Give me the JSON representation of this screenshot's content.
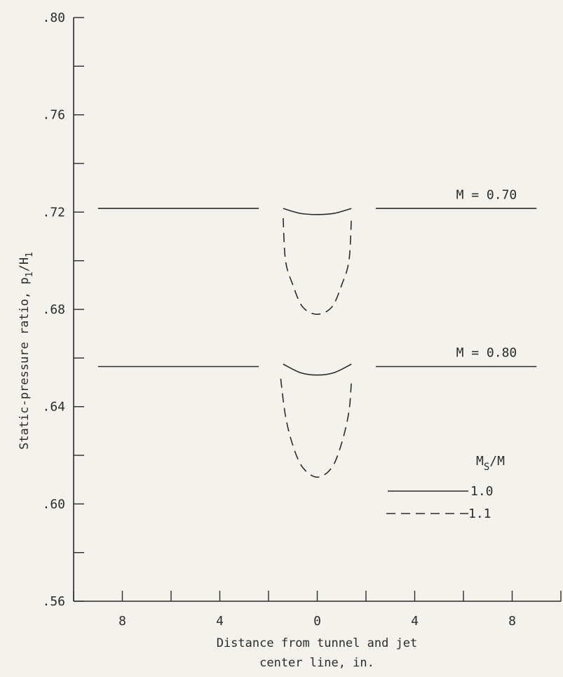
{
  "chart_data": {
    "type": "line",
    "xlabel_line1": "Distance from tunnel and jet",
    "xlabel_line2": "center line, in.",
    "ylabel_main": "Static-pressure ratio, p",
    "ylabel_sub1": "1",
    "ylabel_slash": "/H",
    "ylabel_sub2": "1",
    "x_tick_labels": [
      "8",
      "4",
      "0",
      "4",
      "8"
    ],
    "x_tick_values": [
      -8,
      -4,
      0,
      4,
      8
    ],
    "y_tick_labels": [
      ".56",
      ".60",
      ".64",
      ".68",
      ".72",
      ".76",
      ".80"
    ],
    "y_tick_values": [
      0.56,
      0.6,
      0.64,
      0.68,
      0.72,
      0.76,
      0.8
    ],
    "xlim": [
      -10,
      10
    ],
    "ylim": [
      0.56,
      0.8
    ],
    "grid": false,
    "curve_labels": [
      {
        "text": "M = 0.70",
        "x": 5.7,
        "y": 0.7255
      },
      {
        "text": "M = 0.80",
        "x": 5.7,
        "y": 0.6605
      }
    ],
    "legend": {
      "title_main": "M",
      "title_sub": "S",
      "title_rest": "/M",
      "entries": [
        "1.0",
        "1.1"
      ],
      "placement": "bottom-right"
    },
    "series": [
      {
        "legend": "1.0",
        "group": "M = 0.70",
        "style": "solid",
        "x": [
          -9,
          -2.4
        ],
        "y": [
          0.7215,
          0.7215
        ]
      },
      {
        "legend": "1.0",
        "group": "M = 0.70",
        "style": "solid",
        "x": [
          -1.4,
          -0.7,
          0,
          0.7,
          1.4
        ],
        "y": [
          0.7215,
          0.7195,
          0.719,
          0.7195,
          0.7215
        ]
      },
      {
        "legend": "1.0",
        "group": "M = 0.70",
        "style": "solid",
        "x": [
          2.4,
          9
        ],
        "y": [
          0.7215,
          0.7215
        ]
      },
      {
        "legend": "1.1",
        "group": "M = 0.70",
        "style": "dashed",
        "x": [
          -1.4,
          -1.3,
          -1.0,
          -0.6,
          0,
          0.6,
          1.0,
          1.3,
          1.4
        ],
        "y": [
          0.7175,
          0.7,
          0.69,
          0.681,
          0.678,
          0.681,
          0.69,
          0.7,
          0.7175
        ]
      },
      {
        "legend": "1.0",
        "group": "M = 0.80",
        "style": "solid",
        "x": [
          -9,
          -2.4
        ],
        "y": [
          0.6565,
          0.6565
        ]
      },
      {
        "legend": "1.0",
        "group": "M = 0.80",
        "style": "solid",
        "x": [
          -1.4,
          -0.7,
          0,
          0.7,
          1.4
        ],
        "y": [
          0.6575,
          0.654,
          0.653,
          0.654,
          0.6575
        ]
      },
      {
        "legend": "1.0",
        "group": "M = 0.80",
        "style": "solid",
        "x": [
          2.4,
          9
        ],
        "y": [
          0.6565,
          0.6565
        ]
      },
      {
        "legend": "1.1",
        "group": "M = 0.80",
        "style": "dashed",
        "x": [
          -1.5,
          -1.3,
          -1.0,
          -0.6,
          0,
          0.6,
          1.0,
          1.3,
          1.4
        ],
        "y": [
          0.6515,
          0.636,
          0.624,
          0.615,
          0.611,
          0.615,
          0.625,
          0.638,
          0.6505
        ]
      }
    ]
  }
}
